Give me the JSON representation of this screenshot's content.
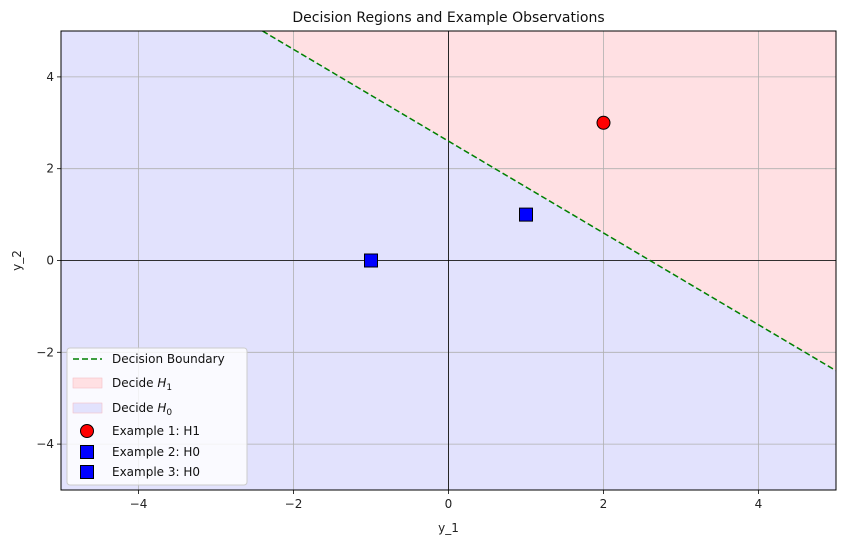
{
  "chart_data": {
    "type": "scatter",
    "title": "Decision Regions and Example Observations",
    "xlabel": "y_1",
    "ylabel": "y_2",
    "xlim": [
      -5,
      5
    ],
    "ylim": [
      -5,
      5
    ],
    "xticks": [
      -4,
      -2,
      0,
      2,
      4
    ],
    "yticks": [
      -4,
      -2,
      0,
      2,
      4
    ],
    "x_tick_labels": [
      "−4",
      "−2",
      "0",
      "2",
      "4"
    ],
    "y_tick_labels": [
      "−4",
      "−2",
      "0",
      "2",
      "4"
    ],
    "grid": true,
    "boundary": {
      "name": "Decision Boundary",
      "points": [
        [
          -2.4,
          5
        ],
        [
          5,
          -2.4
        ]
      ],
      "color": "#008000",
      "style": "dashed"
    },
    "regions": [
      {
        "name": "Decide H1",
        "label_main": "Decide ",
        "label_sym": "H",
        "label_sub": "1",
        "color": "#ffe0e3",
        "polygon": [
          [
            -2.4,
            5
          ],
          [
            5,
            5
          ],
          [
            5,
            -2.4
          ]
        ]
      },
      {
        "name": "Decide H0",
        "label_main": "Decide ",
        "label_sym": "H",
        "label_sub": "0",
        "color": "#e2e2fd",
        "polygon": [
          [
            -5,
            5
          ],
          [
            -2.4,
            5
          ],
          [
            5,
            -2.4
          ],
          [
            5,
            -5
          ],
          [
            -5,
            -5
          ]
        ]
      }
    ],
    "series": [
      {
        "name": "Example 1: H1",
        "x": 2,
        "y": 3,
        "marker": "circle",
        "color": "#ff0000"
      },
      {
        "name": "Example 2: H0",
        "x": -1,
        "y": 0,
        "marker": "square",
        "color": "#0000ff"
      },
      {
        "name": "Example 3: H0",
        "x": 1,
        "y": 1,
        "marker": "square",
        "color": "#0000ff"
      }
    ],
    "legend_position": "lower-left"
  }
}
